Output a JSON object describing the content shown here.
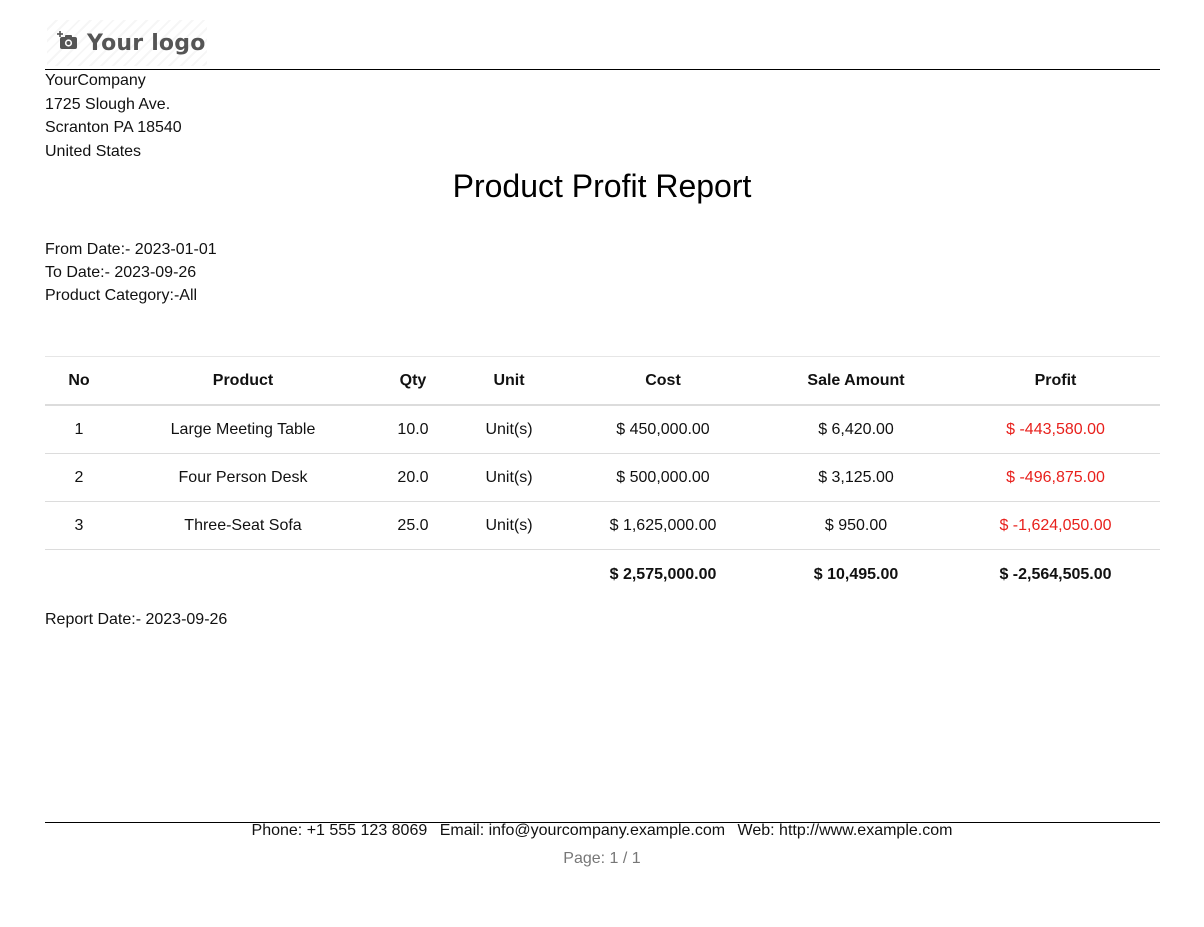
{
  "logo": {
    "icon": "camera-plus-icon",
    "text": "Your logo"
  },
  "company": {
    "name": "YourCompany",
    "street": "1725 Slough Ave.",
    "city_line": "Scranton PA 18540",
    "country": "United States"
  },
  "report": {
    "title": "Product Profit Report",
    "from_date": "From Date:- 2023-01-01",
    "to_date": "To Date:- 2023-09-26",
    "category": "Product Category:-All",
    "report_date": "Report Date:- 2023-09-26"
  },
  "table": {
    "headers": [
      "No",
      "Product",
      "Qty",
      "Unit",
      "Cost",
      "Sale Amount",
      "Profit"
    ],
    "rows": [
      {
        "no": "1",
        "product": "Large Meeting Table",
        "qty": "10.0",
        "unit": "Unit(s)",
        "cost": "$ 450,000.00",
        "sale": "$ 6,420.00",
        "profit": "$ -443,580.00"
      },
      {
        "no": "2",
        "product": "Four Person Desk",
        "qty": "20.0",
        "unit": "Unit(s)",
        "cost": "$ 500,000.00",
        "sale": "$ 3,125.00",
        "profit": "$ -496,875.00"
      },
      {
        "no": "3",
        "product": "Three-Seat Sofa",
        "qty": "25.0",
        "unit": "Unit(s)",
        "cost": "$ 1,625,000.00",
        "sale": "$ 950.00",
        "profit": "$ -1,624,050.00"
      }
    ],
    "totals": {
      "cost": "$ 2,575,000.00",
      "sale": "$ 10,495.00",
      "profit": "$ -2,564,505.00"
    }
  },
  "footer": {
    "phone": "Phone: +1 555 123 8069",
    "email": "Email: info@yourcompany.example.com",
    "web": "Web: http://www.example.com",
    "page": "Page: 1 / 1"
  },
  "colors": {
    "negative": "#e8201c",
    "logo_text": "#555555",
    "pager_text": "#777777"
  }
}
